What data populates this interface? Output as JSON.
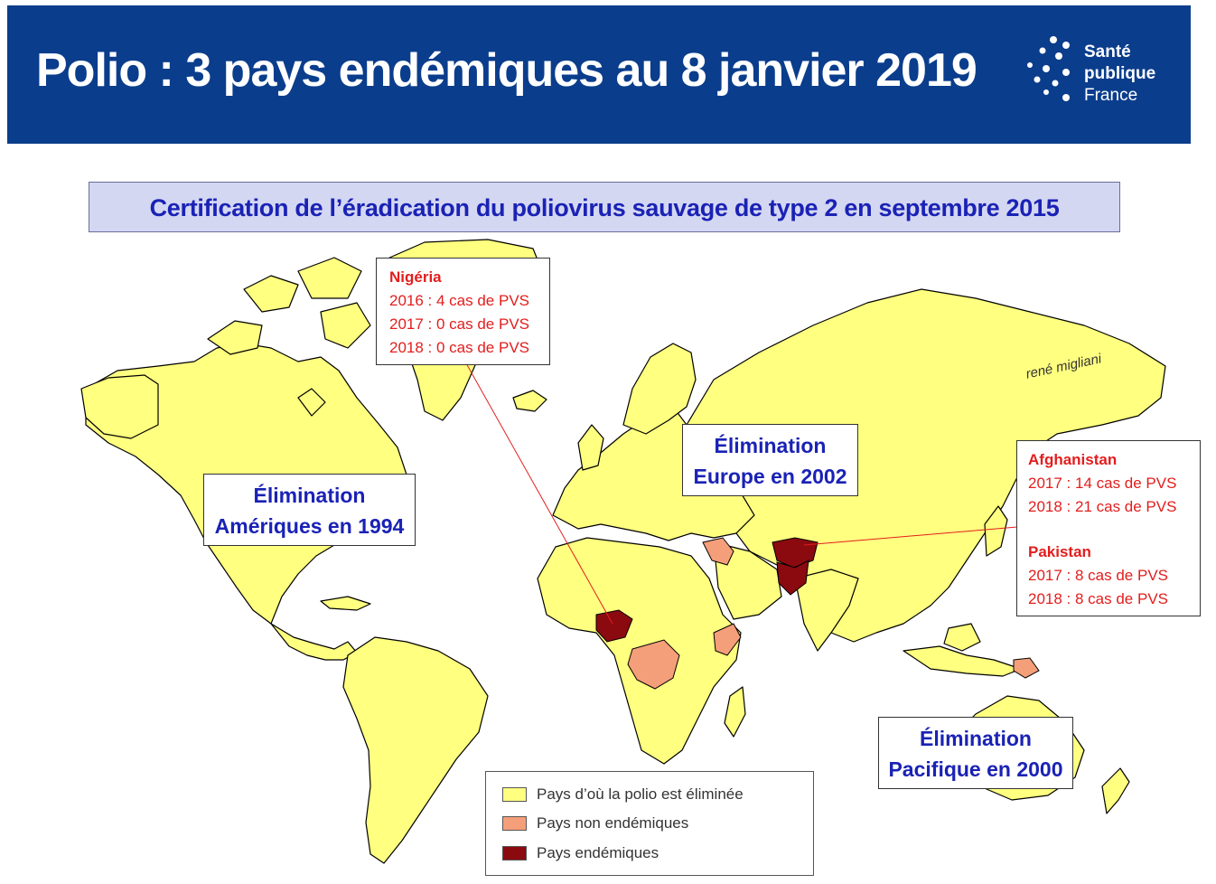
{
  "header": {
    "title": "Polio : 3 pays endémiques au 8 janvier 2019",
    "logo_lines": [
      "Santé",
      "publique",
      "France"
    ]
  },
  "subtitle": "Certification de l’éradication du poliovirus sauvage de type 2 en septembre 2015",
  "callouts": {
    "nigeria": {
      "country": "Nigéria",
      "lines": [
        "2016 : 4 cas de PVS",
        "2017 : 0 cas de PVS",
        "2018 : 0 cas de PVS"
      ]
    },
    "afghanistan": {
      "country": "Afghanistan",
      "lines": [
        "2017 : 14 cas de PVS",
        "2018 : 21 cas de PVS"
      ]
    },
    "pakistan": {
      "country": "Pakistan",
      "lines": [
        "2017 : 8 cas de PVS",
        "2018 : 8 cas de PVS"
      ]
    }
  },
  "elimination": {
    "americas": [
      "Élimination",
      "Amériques en 1994"
    ],
    "europe": [
      "Élimination",
      "Europe en 2002"
    ],
    "pacific": [
      "Élimination",
      "Pacifique en 2000"
    ]
  },
  "author": "rené migliani",
  "legend": [
    {
      "label": "Pays d’où la polio est éliminée",
      "color": "#ffff80"
    },
    {
      "label": "Pays non endémiques",
      "color": "#f59e7a"
    },
    {
      "label": "Pays endémiques",
      "color": "#8b0a10"
    }
  ],
  "colors": {
    "header_bg": "#0a3d8c",
    "eliminated": "#ffff80",
    "non_endemic": "#f59e7a",
    "endemic": "#8b0a10",
    "callout_text": "#e31d1d",
    "elimination_text": "#1a22b5",
    "subtitle_bg": "#d4d7f2"
  }
}
